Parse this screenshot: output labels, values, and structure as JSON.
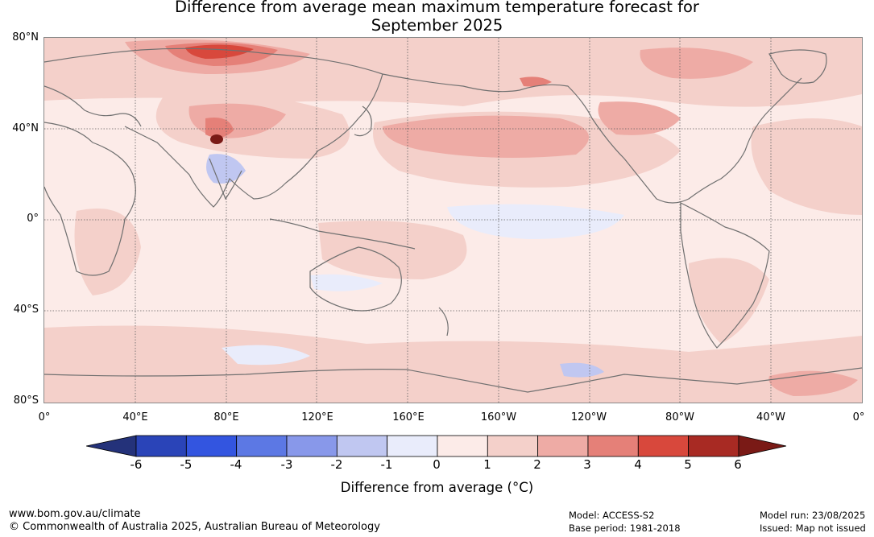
{
  "title": {
    "line1": "Difference from average mean maximum temperature forecast for",
    "line2": "September 2025"
  },
  "map": {
    "lat_labels": [
      "80°N",
      "40°N",
      "0°",
      "40°S",
      "80°S"
    ],
    "lon_labels": [
      "0°",
      "40°E",
      "80°E",
      "120°E",
      "160°E",
      "160°W",
      "120°W",
      "80°W",
      "40°W",
      "0°"
    ],
    "background_color": "#fcebe8",
    "coastline_color": "#707070"
  },
  "colorbar": {
    "tick_labels": [
      "-6",
      "-5",
      "-4",
      "-3",
      "-2",
      "-1",
      "0",
      "1",
      "2",
      "3",
      "4",
      "5",
      "6"
    ],
    "colors": [
      "#24327a",
      "#2a44b8",
      "#3355e0",
      "#5c78e4",
      "#8898ea",
      "#c0c7f1",
      "#e9ecfb",
      "#fcebe8",
      "#f4d0ca",
      "#eeaba5",
      "#e58078",
      "#d8483c",
      "#a82a23",
      "#7a1a16"
    ],
    "label": "Difference from average (°C)"
  },
  "footer": {
    "url": "www.bom.gov.au/climate",
    "copyright": "© Commonwealth of Australia 2025, Australian Bureau of Meteorology",
    "model": "Model: ACCESS-S2",
    "base_period": "Base period: 1981-2018",
    "model_run": "Model run: 23/08/2025",
    "issued": "Issued: Map not issued"
  }
}
